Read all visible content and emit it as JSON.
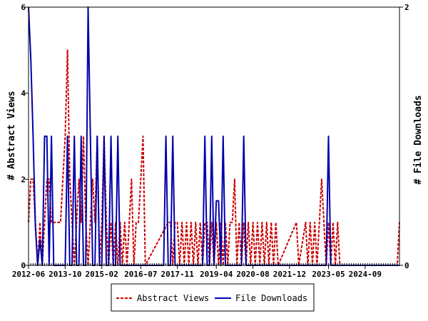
{
  "chart_data": {
    "type": "line",
    "title": "",
    "x_tick_labels": [
      "2012-06",
      "2013-10",
      "2015-02",
      "2016-07",
      "2017-11",
      "2019-04",
      "2020-08",
      "2021-12",
      "2023-05",
      "2024-09"
    ],
    "x_range": [
      "2012-06",
      "2025-12"
    ],
    "y_left": {
      "label": "# Abstract Views",
      "min": 0,
      "max": 6,
      "ticks": [
        0,
        2,
        4,
        6
      ]
    },
    "y_right": {
      "label": "# File Downloads",
      "min": 0,
      "max": 2,
      "ticks": [
        0,
        2
      ]
    },
    "grid": false,
    "legend_position": "bottom",
    "series": [
      {
        "name": "Abstract Views",
        "axis": "left",
        "color": "#cc0000",
        "style": "dashed",
        "points": [
          [
            "2012-06",
            1
          ],
          [
            "2012-07",
            2
          ],
          [
            "2012-08",
            2
          ],
          [
            "2012-09",
            1
          ],
          [
            "2012-10",
            0
          ],
          [
            "2012-11",
            1
          ],
          [
            "2012-12",
            0
          ],
          [
            "2013-01",
            1
          ],
          [
            "2013-02",
            2
          ],
          [
            "2013-03",
            2
          ],
          [
            "2013-04",
            1
          ],
          [
            "2013-05",
            1
          ],
          [
            "2013-06",
            1
          ],
          [
            "2013-07",
            1
          ],
          [
            "2013-08",
            1
          ],
          [
            "2013-09",
            2
          ],
          [
            "2013-10",
            3
          ],
          [
            "2013-11",
            5
          ],
          [
            "2013-12",
            2
          ],
          [
            "2014-01",
            1
          ],
          [
            "2014-02",
            0
          ],
          [
            "2014-03",
            1
          ],
          [
            "2014-04",
            2
          ],
          [
            "2014-05",
            1
          ],
          [
            "2014-06",
            3
          ],
          [
            "2014-07",
            1
          ],
          [
            "2014-08",
            0
          ],
          [
            "2014-09",
            1
          ],
          [
            "2014-10",
            2
          ],
          [
            "2014-11",
            1
          ],
          [
            "2014-12",
            3
          ],
          [
            "2015-01",
            0
          ],
          [
            "2015-02",
            1
          ],
          [
            "2015-03",
            3
          ],
          [
            "2015-04",
            1
          ],
          [
            "2015-05",
            0
          ],
          [
            "2015-06",
            1
          ],
          [
            "2015-07",
            0
          ],
          [
            "2015-08",
            1
          ],
          [
            "2015-09",
            0
          ],
          [
            "2015-10",
            1
          ],
          [
            "2015-11",
            0
          ],
          [
            "2015-12",
            1
          ],
          [
            "2016-01",
            0
          ],
          [
            "2016-02",
            1
          ],
          [
            "2016-03",
            2
          ],
          [
            "2016-04",
            0
          ],
          [
            "2016-05",
            1
          ],
          [
            "2016-06",
            1
          ],
          [
            "2016-07",
            2
          ],
          [
            "2016-08",
            3
          ],
          [
            "2016-09",
            0
          ],
          [
            "2017-07",
            1
          ],
          [
            "2017-08",
            1
          ],
          [
            "2017-09",
            0
          ],
          [
            "2017-10",
            1
          ],
          [
            "2017-11",
            1
          ],
          [
            "2017-12",
            0
          ],
          [
            "2018-01",
            1
          ],
          [
            "2018-02",
            0
          ],
          [
            "2018-03",
            1
          ],
          [
            "2018-04",
            0
          ],
          [
            "2018-05",
            1
          ],
          [
            "2018-06",
            0
          ],
          [
            "2018-07",
            1
          ],
          [
            "2018-08",
            0
          ],
          [
            "2018-09",
            1
          ],
          [
            "2018-10",
            0
          ],
          [
            "2018-11",
            1
          ],
          [
            "2018-12",
            1
          ],
          [
            "2019-01",
            0
          ],
          [
            "2019-02",
            1
          ],
          [
            "2019-03",
            0
          ],
          [
            "2019-04",
            1
          ],
          [
            "2019-05",
            0
          ],
          [
            "2019-06",
            1
          ],
          [
            "2019-07",
            0
          ],
          [
            "2019-08",
            1
          ],
          [
            "2019-09",
            0
          ],
          [
            "2019-10",
            1
          ],
          [
            "2019-11",
            1
          ],
          [
            "2019-12",
            2
          ],
          [
            "2020-01",
            0
          ],
          [
            "2020-02",
            1
          ],
          [
            "2020-03",
            0
          ],
          [
            "2020-04",
            1
          ],
          [
            "2020-05",
            0
          ],
          [
            "2020-06",
            1
          ],
          [
            "2020-07",
            0
          ],
          [
            "2020-08",
            1
          ],
          [
            "2020-09",
            0
          ],
          [
            "2020-10",
            1
          ],
          [
            "2020-11",
            0
          ],
          [
            "2020-12",
            1
          ],
          [
            "2021-01",
            0
          ],
          [
            "2021-02",
            1
          ],
          [
            "2021-03",
            0
          ],
          [
            "2021-04",
            1
          ],
          [
            "2021-05",
            0
          ],
          [
            "2021-06",
            1
          ],
          [
            "2021-07",
            0
          ],
          [
            "2022-03",
            1
          ],
          [
            "2022-04",
            0
          ],
          [
            "2022-07",
            1
          ],
          [
            "2022-08",
            0
          ],
          [
            "2022-09",
            1
          ],
          [
            "2022-10",
            0
          ],
          [
            "2022-11",
            1
          ],
          [
            "2022-12",
            0
          ],
          [
            "2023-01",
            1
          ],
          [
            "2023-02",
            2
          ],
          [
            "2023-03",
            1
          ],
          [
            "2023-04",
            0
          ],
          [
            "2023-05",
            1
          ],
          [
            "2023-06",
            0
          ],
          [
            "2023-07",
            1
          ],
          [
            "2023-08",
            0
          ],
          [
            "2023-09",
            1
          ],
          [
            "2023-10",
            0
          ],
          [
            "2025-11",
            0
          ],
          [
            "2025-12",
            1
          ]
        ]
      },
      {
        "name": "File Downloads",
        "axis": "right",
        "color": "#0000aa",
        "style": "solid",
        "points": [
          [
            "2012-06",
            2
          ],
          [
            "2012-07",
            1.6
          ],
          [
            "2012-08",
            1
          ],
          [
            "2012-09",
            0.3
          ],
          [
            "2012-10",
            0
          ],
          [
            "2012-11",
            0.2
          ],
          [
            "2012-12",
            0
          ],
          [
            "2013-01",
            1
          ],
          [
            "2013-02",
            1
          ],
          [
            "2013-03",
            0
          ],
          [
            "2013-04",
            1
          ],
          [
            "2013-05",
            0
          ],
          [
            "2013-06",
            0
          ],
          [
            "2013-10",
            0
          ],
          [
            "2013-11",
            1
          ],
          [
            "2013-12",
            0
          ],
          [
            "2014-01",
            0
          ],
          [
            "2014-02",
            1
          ],
          [
            "2014-03",
            0
          ],
          [
            "2014-04",
            0
          ],
          [
            "2014-05",
            1
          ],
          [
            "2014-06",
            0
          ],
          [
            "2014-07",
            0
          ],
          [
            "2014-08",
            2
          ],
          [
            "2014-09",
            1
          ],
          [
            "2014-10",
            0
          ],
          [
            "2014-11",
            0
          ],
          [
            "2014-12",
            1
          ],
          [
            "2015-01",
            0
          ],
          [
            "2015-02",
            0
          ],
          [
            "2015-03",
            1
          ],
          [
            "2015-04",
            0
          ],
          [
            "2015-05",
            0
          ],
          [
            "2015-06",
            1
          ],
          [
            "2015-07",
            0
          ],
          [
            "2015-08",
            0
          ],
          [
            "2015-09",
            1
          ],
          [
            "2015-10",
            0
          ],
          [
            "2017-05",
            0
          ],
          [
            "2017-06",
            1
          ],
          [
            "2017-07",
            0
          ],
          [
            "2017-08",
            0
          ],
          [
            "2017-09",
            1
          ],
          [
            "2017-10",
            0
          ],
          [
            "2018-10",
            0
          ],
          [
            "2018-11",
            1
          ],
          [
            "2018-12",
            0
          ],
          [
            "2019-01",
            0
          ],
          [
            "2019-02",
            1
          ],
          [
            "2019-03",
            0
          ],
          [
            "2019-04",
            0.5
          ],
          [
            "2019-05",
            0.5
          ],
          [
            "2019-06",
            0
          ],
          [
            "2019-07",
            1
          ],
          [
            "2019-08",
            0
          ],
          [
            "2020-03",
            0
          ],
          [
            "2020-04",
            1
          ],
          [
            "2020-05",
            0
          ],
          [
            "2023-04",
            0
          ],
          [
            "2023-05",
            1
          ],
          [
            "2023-06",
            0
          ],
          [
            "2025-12",
            0
          ]
        ]
      }
    ]
  }
}
